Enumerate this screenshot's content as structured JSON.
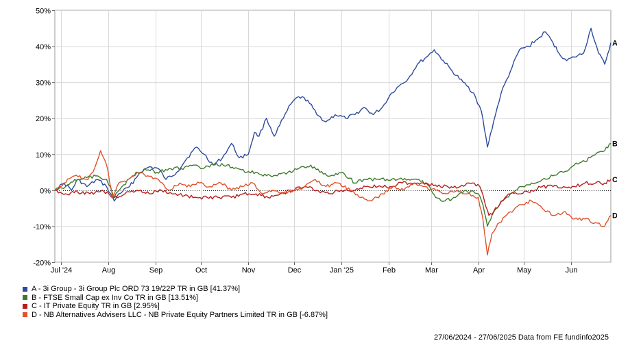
{
  "chart_data": {
    "type": "line",
    "title": "",
    "xlabel": "",
    "ylabel": "",
    "ylim": [
      -20,
      50
    ],
    "y_ticks": [
      "50%",
      "40%",
      "30%",
      "20%",
      "10%",
      "0%",
      "-10%",
      "-20%"
    ],
    "y_tick_values": [
      50,
      40,
      30,
      20,
      10,
      0,
      -10,
      -20
    ],
    "x_range": [
      "2024-06-27",
      "2025-06-27"
    ],
    "x_ticks": [
      {
        "label": "Jul '24",
        "date": "2024-07-01"
      },
      {
        "label": "Aug",
        "date": "2024-08-01"
      },
      {
        "label": "Sep",
        "date": "2024-09-01"
      },
      {
        "label": "Oct",
        "date": "2024-10-01"
      },
      {
        "label": "Nov",
        "date": "2024-11-01"
      },
      {
        "label": "Dec",
        "date": "2024-12-01"
      },
      {
        "label": "Jan '25",
        "date": "2025-01-01"
      },
      {
        "label": "Feb",
        "date": "2025-02-01"
      },
      {
        "label": "Mar",
        "date": "2025-03-01"
      },
      {
        "label": "Apr",
        "date": "2025-04-01"
      },
      {
        "label": "May",
        "date": "2025-05-01"
      },
      {
        "label": "Jun",
        "date": "2025-06-01"
      }
    ],
    "grid": true,
    "zero_line": "dotted",
    "legend_placement": "bottom-left",
    "series": [
      {
        "id": "A",
        "name": "A - 3i Group - 3i Group Plc ORD 73 19/22P TR in GB [41.37%]",
        "color": "#2e4a9c",
        "end_label": "A",
        "points": [
          [
            "2024-06-27",
            0
          ],
          [
            "2024-07-03",
            2
          ],
          [
            "2024-07-08",
            0
          ],
          [
            "2024-07-12",
            3
          ],
          [
            "2024-07-18",
            1
          ],
          [
            "2024-07-25",
            3
          ],
          [
            "2024-07-31",
            1
          ],
          [
            "2024-08-05",
            -3
          ],
          [
            "2024-08-08",
            -1
          ],
          [
            "2024-08-15",
            1
          ],
          [
            "2024-08-22",
            5
          ],
          [
            "2024-08-28",
            6.5
          ],
          [
            "2024-09-03",
            6
          ],
          [
            "2024-09-08",
            3
          ],
          [
            "2024-09-15",
            5
          ],
          [
            "2024-09-22",
            9
          ],
          [
            "2024-09-28",
            12
          ],
          [
            "2024-10-03",
            10
          ],
          [
            "2024-10-09",
            7
          ],
          [
            "2024-10-15",
            9
          ],
          [
            "2024-10-21",
            13
          ],
          [
            "2024-10-26",
            9
          ],
          [
            "2024-11-01",
            10
          ],
          [
            "2024-11-05",
            16
          ],
          [
            "2024-11-08",
            15
          ],
          [
            "2024-11-13",
            20
          ],
          [
            "2024-11-18",
            15
          ],
          [
            "2024-11-24",
            20
          ],
          [
            "2024-11-29",
            24
          ],
          [
            "2024-12-04",
            26
          ],
          [
            "2024-12-10",
            25
          ],
          [
            "2024-12-16",
            21
          ],
          [
            "2024-12-22",
            19
          ],
          [
            "2024-12-28",
            21
          ],
          [
            "2025-01-04",
            20
          ],
          [
            "2025-01-10",
            21
          ],
          [
            "2025-01-16",
            23
          ],
          [
            "2025-01-22",
            21
          ],
          [
            "2025-01-28",
            23
          ],
          [
            "2025-02-03",
            27
          ],
          [
            "2025-02-08",
            29
          ],
          [
            "2025-02-14",
            31
          ],
          [
            "2025-02-20",
            35
          ],
          [
            "2025-02-26",
            37
          ],
          [
            "2025-03-03",
            39
          ],
          [
            "2025-03-09",
            36
          ],
          [
            "2025-03-15",
            33
          ],
          [
            "2025-03-22",
            30
          ],
          [
            "2025-03-29",
            27
          ],
          [
            "2025-04-03",
            22
          ],
          [
            "2025-04-07",
            12
          ],
          [
            "2025-04-11",
            19
          ],
          [
            "2025-04-16",
            27
          ],
          [
            "2025-04-22",
            33
          ],
          [
            "2025-04-28",
            39
          ],
          [
            "2025-05-04",
            40
          ],
          [
            "2025-05-10",
            42
          ],
          [
            "2025-05-15",
            44
          ],
          [
            "2025-05-20",
            41
          ],
          [
            "2025-05-24",
            38
          ],
          [
            "2025-05-29",
            36
          ],
          [
            "2025-06-03",
            37
          ],
          [
            "2025-06-09",
            38
          ],
          [
            "2025-06-14",
            45
          ],
          [
            "2025-06-19",
            38
          ],
          [
            "2025-06-23",
            35
          ],
          [
            "2025-06-27",
            41
          ]
        ]
      },
      {
        "id": "B",
        "name": "B - FTSE Small Cap ex Inv Co TR in GB [13.51%]",
        "color": "#3e7a2a",
        "end_label": "B",
        "points": [
          [
            "2024-06-27",
            0
          ],
          [
            "2024-07-04",
            1
          ],
          [
            "2024-07-10",
            3
          ],
          [
            "2024-07-18",
            3.5
          ],
          [
            "2024-07-25",
            4
          ],
          [
            "2024-07-31",
            3
          ],
          [
            "2024-08-05",
            -2
          ],
          [
            "2024-08-10",
            1
          ],
          [
            "2024-08-17",
            4
          ],
          [
            "2024-08-25",
            6
          ],
          [
            "2024-09-02",
            5
          ],
          [
            "2024-09-10",
            6
          ],
          [
            "2024-09-18",
            6
          ],
          [
            "2024-09-26",
            7
          ],
          [
            "2024-10-02",
            6
          ],
          [
            "2024-10-10",
            7
          ],
          [
            "2024-10-18",
            7
          ],
          [
            "2024-10-25",
            6
          ],
          [
            "2024-10-31",
            5
          ],
          [
            "2024-11-06",
            5
          ],
          [
            "2024-11-13",
            4
          ],
          [
            "2024-11-20",
            4
          ],
          [
            "2024-11-27",
            5
          ],
          [
            "2024-12-04",
            6
          ],
          [
            "2024-12-12",
            7
          ],
          [
            "2024-12-18",
            5
          ],
          [
            "2024-12-25",
            4
          ],
          [
            "2025-01-02",
            5
          ],
          [
            "2025-01-10",
            2
          ],
          [
            "2025-01-17",
            3
          ],
          [
            "2025-01-24",
            3
          ],
          [
            "2025-01-31",
            3
          ],
          [
            "2025-02-07",
            3
          ],
          [
            "2025-02-14",
            3
          ],
          [
            "2025-02-21",
            3
          ],
          [
            "2025-02-28",
            1
          ],
          [
            "2025-03-04",
            -2
          ],
          [
            "2025-03-10",
            -3
          ],
          [
            "2025-03-17",
            -2
          ],
          [
            "2025-03-24",
            0
          ],
          [
            "2025-04-01",
            -1
          ],
          [
            "2025-04-04",
            -4
          ],
          [
            "2025-04-07",
            -10
          ],
          [
            "2025-04-10",
            -7
          ],
          [
            "2025-04-15",
            -4
          ],
          [
            "2025-04-22",
            -1
          ],
          [
            "2025-04-29",
            1
          ],
          [
            "2025-05-06",
            2
          ],
          [
            "2025-05-13",
            3
          ],
          [
            "2025-05-20",
            4
          ],
          [
            "2025-05-27",
            5
          ],
          [
            "2025-06-03",
            7
          ],
          [
            "2025-06-10",
            8
          ],
          [
            "2025-06-17",
            10
          ],
          [
            "2025-06-23",
            11
          ],
          [
            "2025-06-27",
            13
          ]
        ]
      },
      {
        "id": "C",
        "name": "C - IT Private Equity TR in GB [2.95%]",
        "color": "#b71c1c",
        "end_label": "C",
        "points": [
          [
            "2024-06-27",
            0
          ],
          [
            "2024-07-04",
            -1
          ],
          [
            "2024-07-12",
            -0.5
          ],
          [
            "2024-07-20",
            -1
          ],
          [
            "2024-07-28",
            0
          ],
          [
            "2024-08-05",
            -2
          ],
          [
            "2024-08-12",
            -1
          ],
          [
            "2024-08-20",
            0
          ],
          [
            "2024-08-28",
            -1
          ],
          [
            "2024-09-05",
            0
          ],
          [
            "2024-09-12",
            -1
          ],
          [
            "2024-09-20",
            -1.5
          ],
          [
            "2024-09-28",
            -2
          ],
          [
            "2024-10-05",
            -2
          ],
          [
            "2024-10-13",
            -2
          ],
          [
            "2024-10-21",
            -2
          ],
          [
            "2024-10-29",
            -1
          ],
          [
            "2024-11-06",
            -1
          ],
          [
            "2024-11-14",
            -2
          ],
          [
            "2024-11-22",
            -1
          ],
          [
            "2024-11-30",
            0
          ],
          [
            "2024-12-08",
            1
          ],
          [
            "2024-12-16",
            0
          ],
          [
            "2024-12-24",
            -1
          ],
          [
            "2025-01-01",
            0
          ],
          [
            "2025-01-09",
            0
          ],
          [
            "2025-01-17",
            1
          ],
          [
            "2025-01-25",
            1
          ],
          [
            "2025-02-02",
            1
          ],
          [
            "2025-02-10",
            2
          ],
          [
            "2025-02-18",
            2
          ],
          [
            "2025-02-26",
            2
          ],
          [
            "2025-03-05",
            1
          ],
          [
            "2025-03-12",
            1
          ],
          [
            "2025-03-20",
            1
          ],
          [
            "2025-03-28",
            2
          ],
          [
            "2025-04-02",
            1
          ],
          [
            "2025-04-05",
            -3
          ],
          [
            "2025-04-08",
            -7
          ],
          [
            "2025-04-11",
            -6
          ],
          [
            "2025-04-16",
            -3
          ],
          [
            "2025-04-22",
            -1
          ],
          [
            "2025-04-29",
            -1
          ],
          [
            "2025-05-06",
            0
          ],
          [
            "2025-05-13",
            1
          ],
          [
            "2025-05-20",
            1
          ],
          [
            "2025-05-27",
            1
          ],
          [
            "2025-06-03",
            1
          ],
          [
            "2025-06-10",
            2
          ],
          [
            "2025-06-17",
            2
          ],
          [
            "2025-06-23",
            2
          ],
          [
            "2025-06-27",
            3
          ]
        ]
      },
      {
        "id": "D",
        "name": "D - NB Alternatives Advisers LLC - NB Private Equity Partners Limited TR in GB [-6.87%]",
        "color": "#e0522b",
        "end_label": "D",
        "points": [
          [
            "2024-06-27",
            0
          ],
          [
            "2024-07-03",
            2
          ],
          [
            "2024-07-10",
            4
          ],
          [
            "2024-07-18",
            3
          ],
          [
            "2024-07-22",
            5
          ],
          [
            "2024-07-27",
            11
          ],
          [
            "2024-07-31",
            7
          ],
          [
            "2024-08-04",
            -2
          ],
          [
            "2024-08-08",
            2
          ],
          [
            "2024-08-14",
            3
          ],
          [
            "2024-08-20",
            5
          ],
          [
            "2024-08-27",
            4
          ],
          [
            "2024-09-03",
            3
          ],
          [
            "2024-09-10",
            0
          ],
          [
            "2024-09-17",
            2
          ],
          [
            "2024-09-24",
            1
          ],
          [
            "2024-09-30",
            2
          ],
          [
            "2024-10-07",
            1
          ],
          [
            "2024-10-14",
            2
          ],
          [
            "2024-10-21",
            0
          ],
          [
            "2024-10-28",
            1
          ],
          [
            "2024-11-04",
            2
          ],
          [
            "2024-11-10",
            -1
          ],
          [
            "2024-11-17",
            0
          ],
          [
            "2024-11-24",
            -1
          ],
          [
            "2024-12-01",
            0
          ],
          [
            "2024-12-08",
            1
          ],
          [
            "2024-12-15",
            3
          ],
          [
            "2024-12-22",
            1
          ],
          [
            "2024-12-30",
            2
          ],
          [
            "2025-01-07",
            0
          ],
          [
            "2025-01-14",
            -2
          ],
          [
            "2025-01-21",
            -3
          ],
          [
            "2025-01-28",
            -1
          ],
          [
            "2025-02-04",
            1
          ],
          [
            "2025-02-11",
            0
          ],
          [
            "2025-02-18",
            2
          ],
          [
            "2025-02-25",
            1
          ],
          [
            "2025-03-04",
            0
          ],
          [
            "2025-03-11",
            -1
          ],
          [
            "2025-03-18",
            0
          ],
          [
            "2025-03-25",
            -1
          ],
          [
            "2025-04-01",
            -2
          ],
          [
            "2025-04-04",
            -8
          ],
          [
            "2025-04-07",
            -18
          ],
          [
            "2025-04-10",
            -12
          ],
          [
            "2025-04-15",
            -9
          ],
          [
            "2025-04-22",
            -6
          ],
          [
            "2025-04-29",
            -4
          ],
          [
            "2025-05-06",
            -3
          ],
          [
            "2025-05-13",
            -5
          ],
          [
            "2025-05-20",
            -7
          ],
          [
            "2025-05-27",
            -6
          ],
          [
            "2025-06-03",
            -8
          ],
          [
            "2025-06-10",
            -8
          ],
          [
            "2025-06-17",
            -9
          ],
          [
            "2025-06-23",
            -10
          ],
          [
            "2025-06-27",
            -7
          ]
        ]
      }
    ]
  },
  "footer": "27/06/2024 - 27/06/2025 Data from FE fundinfo2025"
}
